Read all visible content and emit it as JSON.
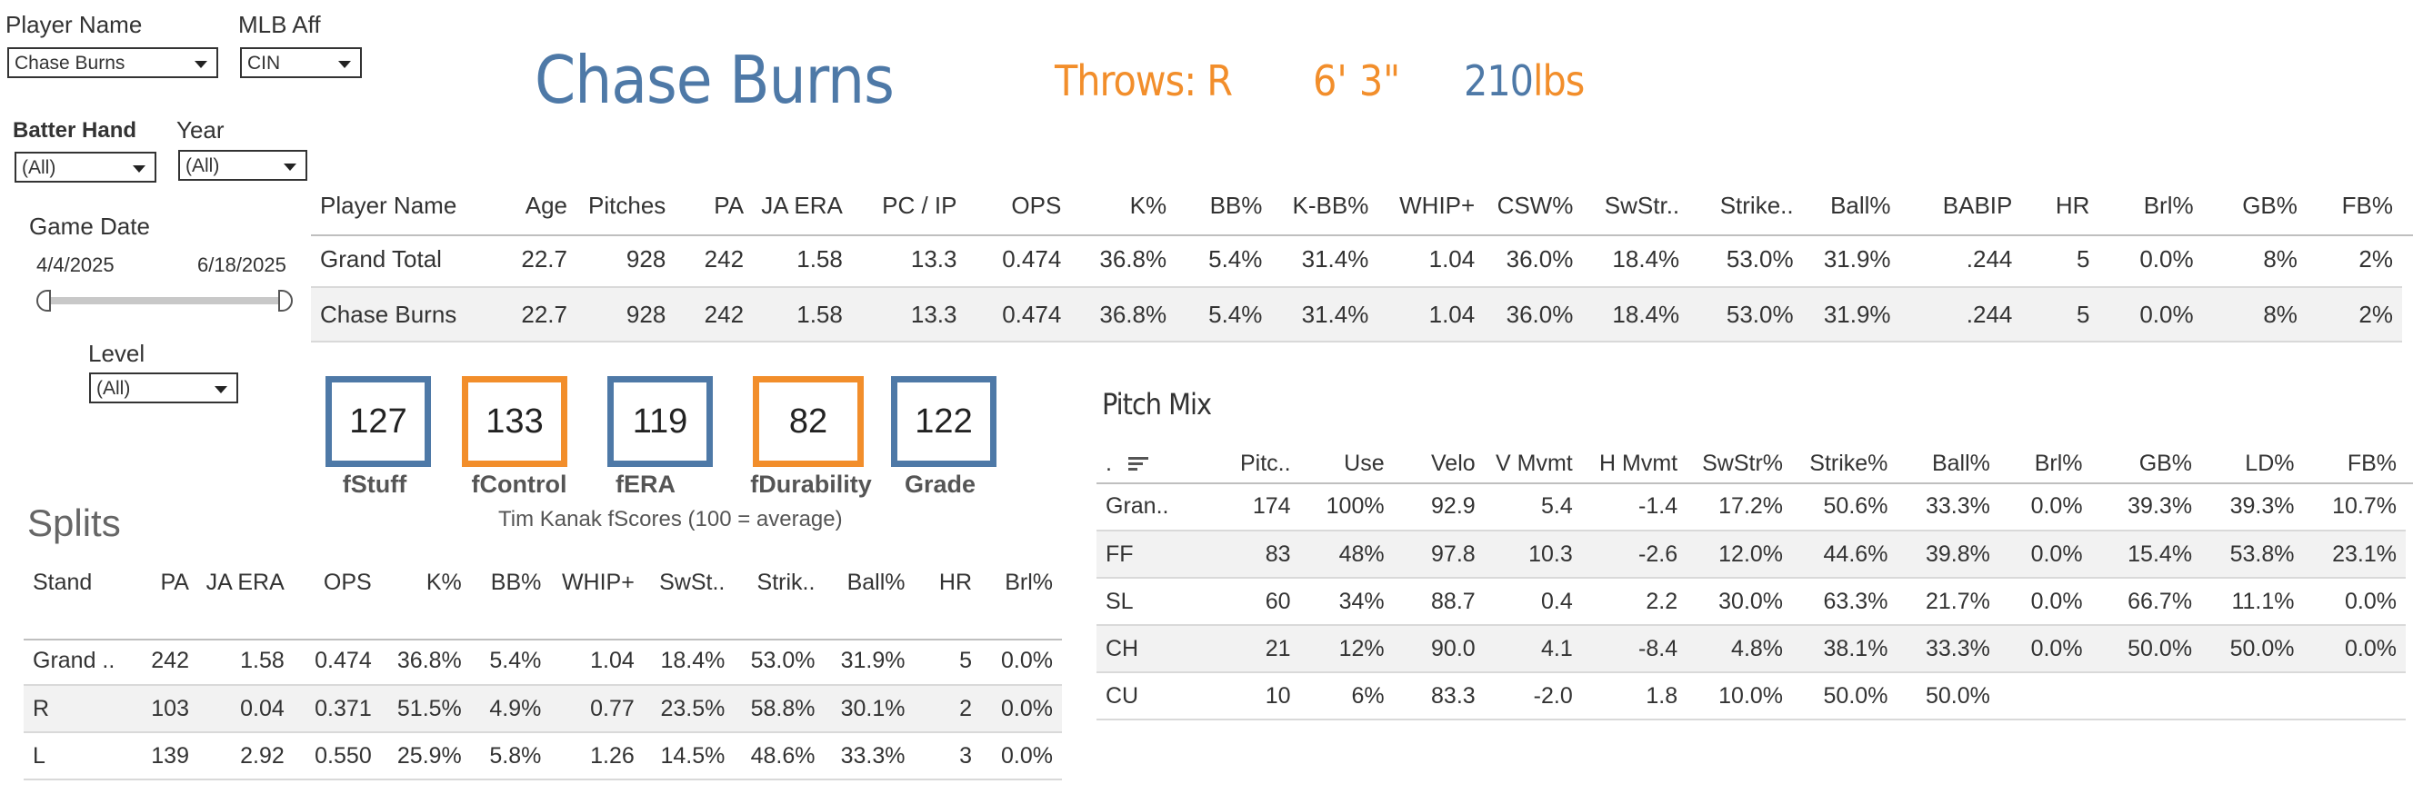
{
  "filters": {
    "player_name": {
      "label": "Player Name",
      "value": "Chase Burns"
    },
    "mlb_aff": {
      "label": "MLB Aff",
      "value": "CIN"
    },
    "batter_hand": {
      "label": "Batter Hand",
      "value": "(All)"
    },
    "year": {
      "label": "Year",
      "value": "(All)"
    },
    "game_date": {
      "label": "Game Date",
      "start": "4/4/2025",
      "end": "6/18/2025"
    },
    "level": {
      "label": "Level",
      "value": "(All)"
    }
  },
  "header": {
    "player_name": "Chase Burns",
    "throws": "Throws: R",
    "height": "6' 3\"",
    "weight_value": "210",
    "weight_unit": "lbs"
  },
  "colors": {
    "blue": "#4e79a7",
    "orange": "#f28e2b",
    "row_alt": "#f2f2f2"
  },
  "summary": {
    "columns": [
      "Player Name",
      "Age",
      "Pitches",
      "PA",
      "JA ERA",
      "PC / IP",
      "OPS",
      "K%",
      "BB%",
      "K-BB%",
      "WHIP+",
      "CSW%",
      "SwStr..",
      "Strike..",
      "Ball%",
      "BABIP",
      "HR",
      "Brl%",
      "GB%",
      "FB%"
    ],
    "rows": [
      [
        "Grand Total",
        "22.7",
        "928",
        "242",
        "1.58",
        "13.3",
        "0.474",
        "36.8%",
        "5.4%",
        "31.4%",
        "1.04",
        "36.0%",
        "18.4%",
        "53.0%",
        "31.9%",
        ".244",
        "5",
        "0.0%",
        "8%",
        "2%"
      ],
      [
        "Chase Burns",
        "22.7",
        "928",
        "242",
        "1.58",
        "13.3",
        "0.474",
        "36.8%",
        "5.4%",
        "31.4%",
        "1.04",
        "36.0%",
        "18.4%",
        "53.0%",
        "31.9%",
        ".244",
        "5",
        "0.0%",
        "8%",
        "2%"
      ]
    ]
  },
  "fscores": {
    "items": [
      {
        "value": "127",
        "label": "fStuff",
        "color": "blue"
      },
      {
        "value": "133",
        "label": "fControl",
        "color": "orange"
      },
      {
        "value": "119",
        "label": "fERA",
        "color": "blue"
      },
      {
        "value": "82",
        "label": "fDurability",
        "color": "orange"
      },
      {
        "value": "122",
        "label": "Grade",
        "color": "blue"
      }
    ],
    "caption": "Tim Kanak fScores (100 = average)"
  },
  "splits": {
    "title": "Splits",
    "columns": [
      "Stand",
      "PA",
      "JA ERA",
      "OPS",
      "K%",
      "BB%",
      "WHIP+",
      "SwSt..",
      "Strik..",
      "Ball%",
      "HR",
      "Brl%"
    ],
    "rows": [
      [
        "Grand ..",
        "242",
        "1.58",
        "0.474",
        "36.8%",
        "5.4%",
        "1.04",
        "18.4%",
        "53.0%",
        "31.9%",
        "5",
        "0.0%"
      ],
      [
        "R",
        "103",
        "0.04",
        "0.371",
        "51.5%",
        "4.9%",
        "0.77",
        "23.5%",
        "58.8%",
        "30.1%",
        "2",
        "0.0%"
      ],
      [
        "L",
        "139",
        "2.92",
        "0.550",
        "25.9%",
        "5.8%",
        "1.26",
        "14.5%",
        "48.6%",
        "33.3%",
        "3",
        "0.0%"
      ]
    ]
  },
  "pitch_mix": {
    "title": "Pitch Mix",
    "columns": [
      ".",
      "Pitc..",
      "Use",
      "Velo",
      "V Mvmt",
      "H Mvmt",
      "SwStr%",
      "Strike%",
      "Ball%",
      "Brl%",
      "GB%",
      "LD%",
      "FB%"
    ],
    "rows": [
      [
        "Gran..",
        "174",
        "100%",
        "92.9",
        "5.4",
        "-1.4",
        "17.2%",
        "50.6%",
        "33.3%",
        "0.0%",
        "39.3%",
        "39.3%",
        "10.7%"
      ],
      [
        "FF",
        "83",
        "48%",
        "97.8",
        "10.3",
        "-2.6",
        "12.0%",
        "44.6%",
        "39.8%",
        "0.0%",
        "15.4%",
        "53.8%",
        "23.1%"
      ],
      [
        "SL",
        "60",
        "34%",
        "88.7",
        "0.4",
        "2.2",
        "30.0%",
        "63.3%",
        "21.7%",
        "0.0%",
        "66.7%",
        "11.1%",
        "0.0%"
      ],
      [
        "CH",
        "21",
        "12%",
        "90.0",
        "4.1",
        "-8.4",
        "4.8%",
        "38.1%",
        "33.3%",
        "0.0%",
        "50.0%",
        "50.0%",
        "0.0%"
      ],
      [
        "CU",
        "10",
        "6%",
        "83.3",
        "-2.0",
        "1.8",
        "10.0%",
        "50.0%",
        "50.0%",
        "",
        "",
        "",
        ""
      ]
    ]
  }
}
